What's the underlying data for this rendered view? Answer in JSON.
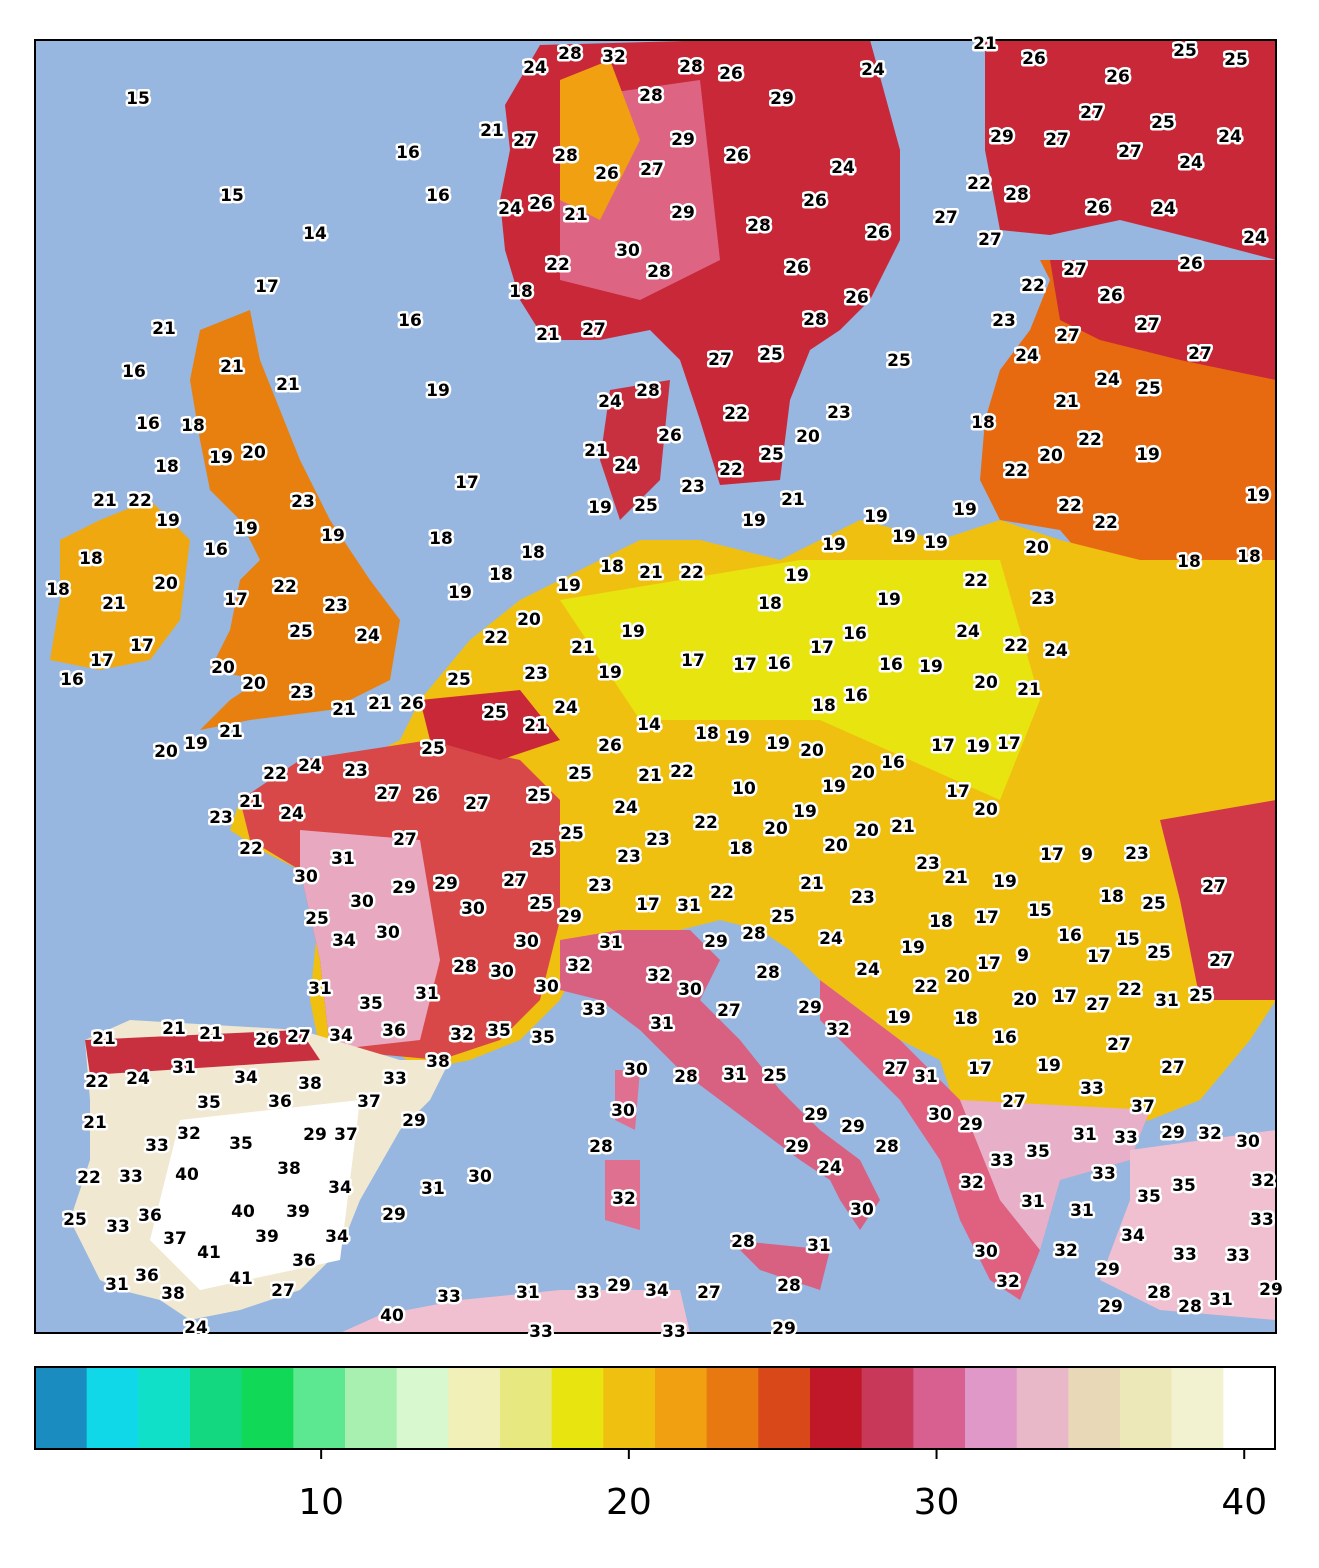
{
  "labels": [
    21,
    28,
    32,
    28,
    24,
    26,
    24,
    26,
    25,
    25,
    26,
    15,
    28,
    29,
    27,
    25,
    21,
    27,
    29,
    29,
    27,
    27,
    24,
    16,
    28,
    26,
    26,
    27,
    24,
    24,
    15,
    16,
    22,
    28,
    24,
    26,
    21,
    29,
    26,
    26,
    24,
    27,
    14,
    28,
    30,
    26,
    27,
    24,
    22,
    26,
    28,
    27,
    26,
    17,
    18,
    22,
    26,
    26,
    16,
    21,
    21,
    27,
    28,
    23,
    27,
    27,
    21,
    16,
    27,
    25,
    25,
    24,
    27,
    21,
    19,
    28,
    24,
    24,
    25,
    21,
    16,
    18,
    22,
    23,
    18,
    20,
    19,
    18,
    26,
    21,
    24,
    20,
    22,
    20,
    19,
    25,
    22,
    17,
    23,
    22,
    21,
    22,
    23,
    21,
    19,
    25,
    22,
    19,
    19,
    19,
    19,
    19,
    19,
    19,
    19,
    22,
    19,
    16,
    18,
    18,
    19,
    20,
    18,
    18,
    18,
    20,
    18,
    22,
    18,
    18,
    21,
    22,
    19,
    19,
    22,
    17,
    19,
    21,
    23,
    20,
    18,
    19,
    23,
    25,
    24,
    22,
    19,
    21,
    16,
    24,
    22,
    24,
    17,
    17,
    17,
    17,
    16,
    17,
    16,
    19,
    20,
    23,
    19,
    16,
    20,
    20,
    21,
    25,
    23,
    21,
    26,
    21,
    25,
    24,
    18,
    16,
    21,
    19,
    20,
    21,
    14,
    18,
    19,
    19,
    20,
    17,
    19,
    17,
    25,
    26,
    16,
    24,
    22,
    23,
    21,
    22,
    25,
    20,
    27,
    26,
    27,
    25,
    10,
    19,
    17,
    21,
    24,
    23,
    24,
    19,
    20,
    27,
    25,
    22,
    20,
    20,
    21,
    22,
    31,
    25,
    23,
    23,
    18,
    20,
    17,
    9,
    23,
    30,
    29,
    29,
    27,
    23,
    23,
    21,
    19,
    30,
    30,
    25,
    17,
    31,
    22,
    21,
    23,
    18,
    27,
    25,
    29,
    25,
    18,
    17,
    15,
    25,
    34,
    30,
    30,
    31,
    29,
    28,
    24,
    19,
    16,
    15,
    28,
    30,
    32,
    24,
    28,
    20,
    17,
    9,
    17,
    25,
    27,
    31,
    31,
    30,
    32,
    30,
    22,
    20,
    17,
    22,
    35,
    33,
    27,
    29,
    27,
    31,
    25,
    21,
    21,
    21,
    34,
    36,
    32,
    35,
    35,
    31,
    32,
    19,
    18,
    26,
    27,
    16,
    27,
    38,
    30,
    22,
    24,
    31,
    34,
    38,
    33,
    28,
    31,
    25,
    27,
    31,
    17,
    19,
    27,
    35,
    36,
    37,
    33,
    27,
    37,
    21,
    29,
    30,
    29,
    29,
    30,
    29,
    32,
    29,
    37,
    35,
    33,
    28,
    29,
    28,
    31,
    33,
    29,
    32,
    30,
    35,
    33,
    24,
    38,
    40,
    22,
    33,
    30,
    33,
    34,
    31,
    32,
    35,
    32,
    35,
    32,
    31,
    31,
    40,
    39,
    29,
    30,
    25,
    33,
    36,
    33,
    37,
    39,
    34,
    34,
    32,
    30,
    28,
    31,
    41,
    36,
    33,
    33,
    36,
    41,
    29,
    32,
    31,
    38,
    27,
    33,
    31,
    33,
    29,
    34,
    27,
    28,
    28,
    31,
    29,
    40,
    29,
    28,
    24,
    33,
    33,
    29
  ],
  "colorbar": {
    "range": [
      0.7,
      41
    ],
    "ticks": [
      10,
      20,
      30,
      40
    ],
    "colors": [
      "#1a8cc0",
      "#10d8e8",
      "#10e0c8",
      "#14d880",
      "#12d858",
      "#5ce890",
      "#a8f0b0",
      "#d8f8d0",
      "#f0f0b8",
      "#e8e880",
      "#e8e410",
      "#f0c010",
      "#f0a010",
      "#e87810",
      "#d84818",
      "#c01828",
      "#c83858",
      "#d86090",
      "#e098c8",
      "#e8b8c8",
      "#e8d8b8",
      "#ece8b8",
      "#f2f2d0",
      "#ffffff"
    ]
  }
}
